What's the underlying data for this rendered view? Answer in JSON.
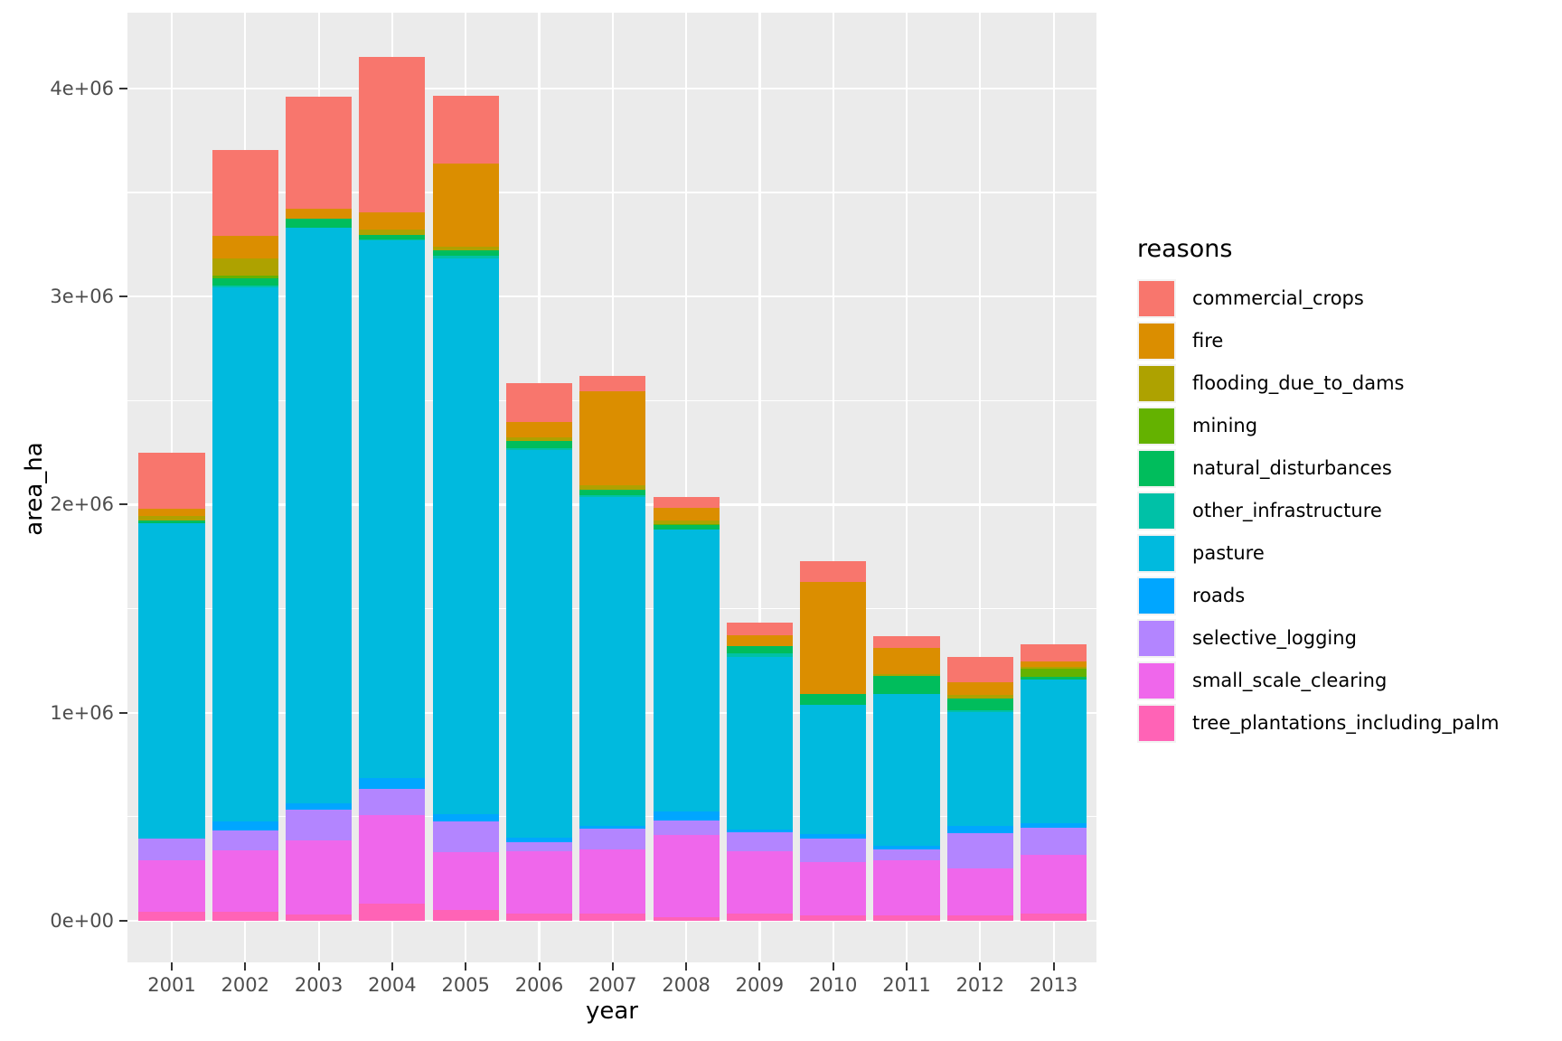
{
  "chart_data": {
    "type": "bar",
    "stacked": true,
    "title": "",
    "xlabel": "year",
    "ylabel": "area_ha",
    "legend_title": "reasons",
    "legend_position": "right",
    "grid": true,
    "categories": [
      "2001",
      "2002",
      "2003",
      "2004",
      "2005",
      "2006",
      "2007",
      "2008",
      "2009",
      "2010",
      "2011",
      "2012",
      "2013"
    ],
    "series": [
      {
        "name": "commercial_crops",
        "color": "#F8766D",
        "values": [
          272000,
          410000,
          537000,
          750000,
          327000,
          188000,
          75000,
          51000,
          61000,
          101000,
          56000,
          123000,
          85000
        ]
      },
      {
        "name": "fire",
        "color": "#DB8E00",
        "values": [
          32000,
          112000,
          48000,
          80000,
          399000,
          73000,
          452000,
          59000,
          48000,
          539000,
          128000,
          63000,
          25000
        ]
      },
      {
        "name": "flooding_due_to_dams",
        "color": "#AEA200",
        "values": [
          22000,
          81000,
          0,
          26000,
          15000,
          20000,
          19000,
          19000,
          0,
          0,
          9000,
          16000,
          8000
        ]
      },
      {
        "name": "mining",
        "color": "#64B200",
        "values": [
          0,
          12000,
          0,
          0,
          0,
          0,
          0,
          5000,
          0,
          0,
          0,
          0,
          40000
        ]
      },
      {
        "name": "natural_disturbances",
        "color": "#00BD5C",
        "values": [
          16000,
          36000,
          43000,
          22000,
          29000,
          33000,
          26000,
          22000,
          36000,
          51000,
          85000,
          56000,
          12000
        ]
      },
      {
        "name": "other_infrastructure",
        "color": "#00C1A7",
        "values": [
          0,
          10000,
          0,
          5000,
          10000,
          8000,
          8000,
          0,
          17000,
          0,
          0,
          9000,
          0
        ]
      },
      {
        "name": "pasture",
        "color": "#00BADE",
        "values": [
          1515000,
          2566000,
          2769000,
          2582000,
          2671000,
          1862000,
          1582000,
          1353000,
          830000,
          620000,
          731000,
          545000,
          691000
        ]
      },
      {
        "name": "roads",
        "color": "#00A6FF",
        "values": [
          0,
          42000,
          28000,
          52000,
          36000,
          22000,
          15000,
          46000,
          15000,
          22000,
          17000,
          36000,
          22000
        ]
      },
      {
        "name": "selective_logging",
        "color": "#B385FF",
        "values": [
          102000,
          95000,
          149000,
          129000,
          145000,
          46000,
          97000,
          69000,
          91000,
          112000,
          51000,
          169000,
          128000
        ]
      },
      {
        "name": "small_scale_clearing",
        "color": "#EF67EB",
        "values": [
          249000,
          296000,
          354000,
          423000,
          282000,
          300000,
          308000,
          394000,
          300000,
          258000,
          267000,
          226000,
          283000
        ]
      },
      {
        "name": "tree_plantations_including_palm",
        "color": "#FF63B6",
        "values": [
          43000,
          43000,
          32000,
          84000,
          50000,
          33000,
          36000,
          17000,
          33000,
          25000,
          25000,
          27000,
          36000
        ]
      }
    ],
    "y_ticks": [
      {
        "label": "0e+00",
        "value": 0
      },
      {
        "label": "1e+06",
        "value": 1000000
      },
      {
        "label": "2e+06",
        "value": 2000000
      },
      {
        "label": "3e+06",
        "value": 3000000
      },
      {
        "label": "4e+06",
        "value": 4000000
      }
    ],
    "y_minor": [
      500000,
      1500000,
      2500000,
      3500000
    ],
    "ylim": [
      -208000,
      4364000
    ],
    "panel_background": "#EBEBEB",
    "grid_color": "#FFFFFF",
    "tick_label_color": "#4D4D4D"
  }
}
